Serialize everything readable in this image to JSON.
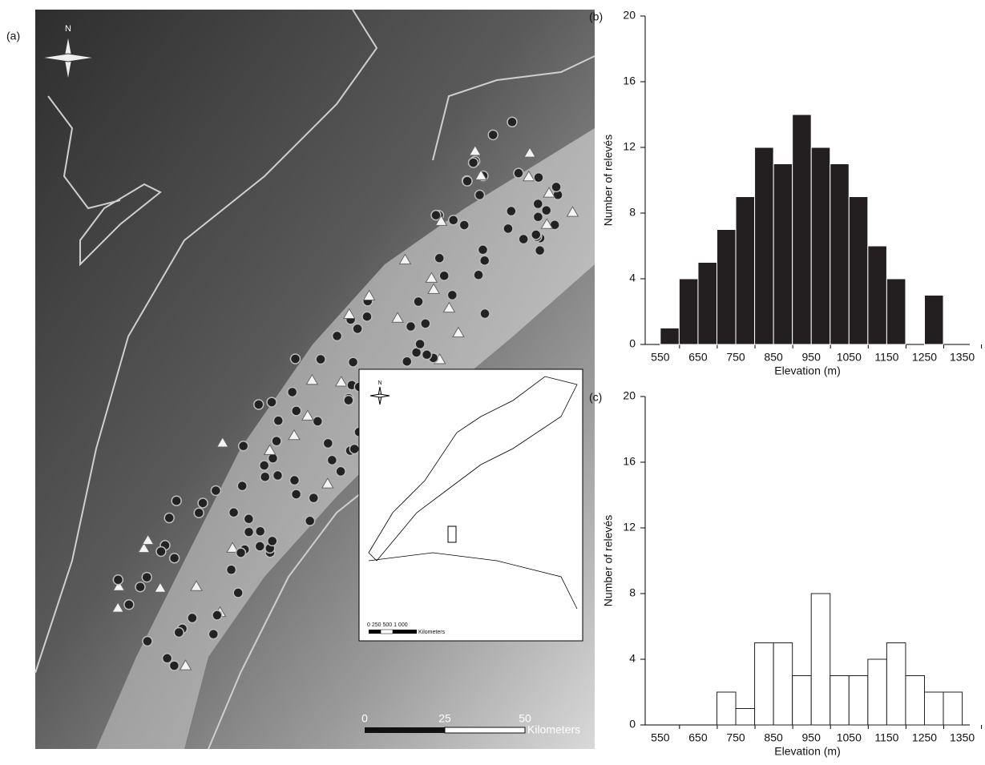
{
  "map": {
    "label": "(a)",
    "north": "N",
    "scale_labels": [
      0,
      25,
      50
    ],
    "scale_unit": "Kilometers",
    "inset": {
      "north": "N",
      "scale_labels": "0  250 500     1 000",
      "scale_unit": "Kilometers"
    }
  },
  "chart_data": [
    {
      "type": "histogram",
      "label": "(b)",
      "xlabel": "Elevation (m)",
      "ylabel": "Number of relevés",
      "bins": [
        550,
        600,
        650,
        700,
        750,
        800,
        850,
        900,
        950,
        1000,
        1050,
        1100,
        1150,
        1200,
        1250,
        1300,
        1350
      ],
      "values": [
        1,
        4,
        5,
        7,
        9,
        12,
        11,
        14,
        12,
        11,
        9,
        6,
        4,
        0,
        3,
        0
      ],
      "color": "#231f20",
      "edgecolor": "#ffffff",
      "xlim": [
        510,
        1370
      ],
      "xticks": [
        550,
        650,
        750,
        850,
        950,
        1050,
        1150,
        1250,
        1350
      ],
      "ylim": [
        0,
        20
      ],
      "yticks": [
        0,
        4,
        8,
        12,
        16,
        20
      ]
    },
    {
      "type": "histogram",
      "label": "(c)",
      "xlabel": "Elevation (m)",
      "ylabel": "Number of relevés",
      "bins": [
        550,
        600,
        650,
        700,
        750,
        800,
        850,
        900,
        950,
        1000,
        1050,
        1100,
        1150,
        1200,
        1250,
        1300,
        1350
      ],
      "values": [
        0,
        0,
        0,
        2,
        1,
        5,
        5,
        3,
        8,
        3,
        3,
        4,
        5,
        3,
        2,
        2
      ],
      "color": "#ffffff",
      "edgecolor": "#231f20",
      "xlim": [
        510,
        1370
      ],
      "xticks": [
        550,
        650,
        750,
        850,
        950,
        1050,
        1150,
        1250,
        1350
      ],
      "ylim": [
        0,
        20
      ],
      "yticks": [
        0,
        4,
        8,
        12,
        16,
        20
      ]
    }
  ]
}
